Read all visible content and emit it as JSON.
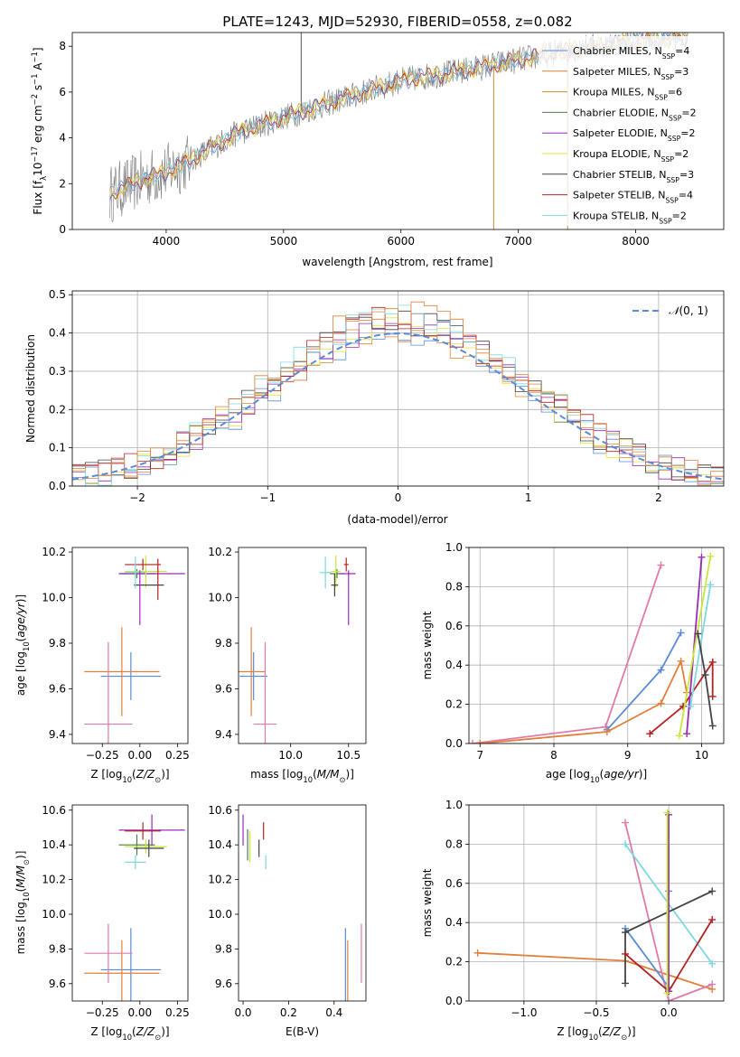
{
  "colors": {
    "chabrier_miles": "#5b8bd6",
    "salpeter_miles": "#e0803a",
    "kroupa_miles": "#d48a2a",
    "chabrier_elodie": "#4a7a4a",
    "salpeter_elodie": "#9a2bb5",
    "kroupa_elodie": "#e8e23a",
    "chabrier_stelib": "#444444",
    "salpeter_stelib": "#b22222",
    "kroupa_stelib": "#7dd8e0",
    "data": "#7a7a7a",
    "pink": "#e07aa8",
    "lime": "#c6e83a"
  },
  "chart_data": [
    {
      "id": "spectrum",
      "type": "line",
      "title": "PLATE=1243, MJD=52930, FIBERID=0558, z=0.082",
      "xlabel": "wavelength [Angstrom, rest frame]",
      "ylabel": "Flux [fλ10⁻¹⁷ erg cm⁻² s⁻¹ A⁻¹]",
      "xlim": [
        3200,
        8750
      ],
      "ylim": [
        0,
        8.6
      ],
      "xticks": [
        4000,
        5000,
        6000,
        7000,
        8000
      ],
      "yticks": [
        0,
        2,
        4,
        6,
        8
      ],
      "legend_position": "upper-right",
      "legend": [
        "Chabrier MILES, N_SSP=4",
        "Salpeter MILES, N_SSP=3",
        "Kroupa MILES, N_SSP=6",
        "Chabrier ELODIE, N_SSP=2",
        "Salpeter ELODIE, N_SSP=2",
        "Kroupa ELODIE, N_SSP=2",
        "Chabrier STELIB, N_SSP=3",
        "Salpeter STELIB, N_SSP=4",
        "Kroupa STELIB, N_SSP=2"
      ],
      "continuum": [
        [
          3500,
          1.5
        ],
        [
          3800,
          2.2
        ],
        [
          4000,
          2.5
        ],
        [
          4300,
          3.3
        ],
        [
          4600,
          4.2
        ],
        [
          5000,
          4.9
        ],
        [
          5500,
          5.7
        ],
        [
          6000,
          6.5
        ],
        [
          6500,
          6.9
        ],
        [
          7000,
          7.4
        ],
        [
          7500,
          7.9
        ],
        [
          8000,
          8.2
        ],
        [
          8400,
          8.4
        ]
      ],
      "spikes": [
        [
          5150,
          8.6
        ],
        [
          6790,
          0
        ],
        [
          7420,
          0
        ]
      ]
    },
    {
      "id": "residuals",
      "type": "histogram",
      "xlabel": "(data-model)/error",
      "ylabel": "Normed distribution",
      "xlim": [
        -2.5,
        2.5
      ],
      "ylim": [
        0,
        0.51
      ],
      "xticks": [
        -2,
        -1,
        0,
        1,
        2
      ],
      "yticks": [
        0.0,
        0.1,
        0.2,
        0.3,
        0.4,
        0.5
      ],
      "grid": true,
      "legend_position": "upper-right",
      "legend": [
        "N(0,1)"
      ],
      "bin_width": 0.1
    },
    {
      "id": "age_vs_Z",
      "type": "errorbar",
      "xlabel": "Z [log10(Z/Z⊙)]",
      "ylabel": "age [log10(age/yr)]",
      "xlim": [
        -0.45,
        0.32
      ],
      "ylim": [
        9.36,
        10.22
      ],
      "xticks": [
        -0.25,
        0.0,
        0.25
      ],
      "yticks": [
        9.4,
        9.6,
        9.8,
        10.0,
        10.2
      ],
      "points": [
        {
          "model": "chabrier_miles",
          "x": -0.06,
          "y": 9.655,
          "xerr": 0.2,
          "yerr": 0.105
        },
        {
          "model": "salpeter_miles",
          "x": -0.12,
          "y": 9.675,
          "xerr": 0.25,
          "yerr": 0.195
        },
        {
          "model": "pink",
          "x": -0.21,
          "y": 9.445,
          "xerr": 0.16,
          "yerr": 0.36
        },
        {
          "model": "chabrier_elodie",
          "x": -0.02,
          "y": 10.105,
          "xerr": 0.12,
          "yerr": 0.02
        },
        {
          "model": "salpeter_elodie",
          "x": 0.08,
          "y": 10.105,
          "xerr": 0.22,
          "yerr": 0.0
        },
        {
          "model": "lime",
          "x": 0.04,
          "y": 10.115,
          "xerr": 0.14,
          "yerr": 0.07
        },
        {
          "model": "chabrier_stelib",
          "x": 0.06,
          "y": 10.055,
          "xerr": 0.1,
          "yerr": 0.0
        },
        {
          "model": "salpeter_stelib",
          "x": 0.02,
          "y": 10.145,
          "xerr": 0.12,
          "yerr": 0.025
        },
        {
          "model": "kroupa_stelib",
          "x": -0.03,
          "y": 10.11,
          "xerr": 0.07,
          "yerr": 0.07
        },
        {
          "model": "salpeter_elodie",
          "x": 0.0,
          "y": 10.0,
          "xerr": 0.0,
          "yerr": 0.12
        },
        {
          "model": "salpeter_stelib",
          "x": 0.12,
          "y": 10.08,
          "xerr": 0.0,
          "yerr": 0.09
        }
      ]
    },
    {
      "id": "age_vs_mass",
      "type": "errorbar",
      "xlabel": "mass [log10(M/M⊙)]",
      "ylabel": "",
      "xlim": [
        9.55,
        10.65
      ],
      "ylim": [
        9.36,
        10.22
      ],
      "xticks": [
        10.0,
        10.5
      ],
      "yticks": [
        9.4,
        9.6,
        9.8,
        10.0,
        10.2
      ],
      "points": [
        {
          "model": "chabrier_miles",
          "x": 9.68,
          "y": 9.655,
          "xerr": 0.12,
          "yerr": 0.105
        },
        {
          "model": "salpeter_miles",
          "x": 9.66,
          "y": 9.675,
          "xerr": 0.12,
          "yerr": 0.195
        },
        {
          "model": "pink",
          "x": 9.78,
          "y": 9.445,
          "xerr": 0.1,
          "yerr": 0.36
        },
        {
          "model": "chabrier_elodie",
          "x": 10.4,
          "y": 10.105,
          "xerr": 0.06,
          "yerr": 0.02
        },
        {
          "model": "salpeter_elodie",
          "x": 10.49,
          "y": 10.105,
          "xerr": 0.07,
          "yerr": 0.0
        },
        {
          "model": "lime",
          "x": 10.39,
          "y": 10.115,
          "xerr": 0.04,
          "yerr": 0.07
        },
        {
          "model": "chabrier_stelib",
          "x": 10.38,
          "y": 10.055,
          "xerr": 0.03,
          "yerr": 0.05
        },
        {
          "model": "salpeter_stelib",
          "x": 10.48,
          "y": 10.145,
          "xerr": 0.02,
          "yerr": 0.03
        },
        {
          "model": "kroupa_stelib",
          "x": 10.3,
          "y": 10.11,
          "xerr": 0.05,
          "yerr": 0.07
        },
        {
          "model": "salpeter_elodie",
          "x": 10.5,
          "y": 10.0,
          "xerr": 0.0,
          "yerr": 0.12
        }
      ]
    },
    {
      "id": "weight_vs_age",
      "type": "line",
      "xlabel": "age [log10(age/yr)]",
      "ylabel": "mass weight",
      "xlim": [
        6.85,
        10.3
      ],
      "ylim": [
        0,
        1.0
      ],
      "xticks": [
        7,
        8,
        9,
        10
      ],
      "yticks": [
        0.0,
        0.2,
        0.4,
        0.6,
        0.8,
        1.0
      ],
      "grid": true,
      "series": [
        {
          "model": "pink",
          "x": [
            6.9,
            8.7,
            9.45
          ],
          "y": [
            0.0,
            0.085,
            0.91
          ]
        },
        {
          "model": "chabrier_miles",
          "x": [
            8.72,
            9.45,
            9.72
          ],
          "y": [
            0.07,
            0.375,
            0.565
          ]
        },
        {
          "model": "salpeter_miles",
          "x": [
            7.0,
            8.72,
            9.45,
            9.72,
            9.8
          ],
          "y": [
            0.0,
            0.06,
            0.205,
            0.42,
            0.26
          ]
        },
        {
          "model": "salpeter_stelib",
          "x": [
            9.3,
            9.75,
            10.15,
            10.15
          ],
          "y": [
            0.05,
            0.19,
            0.415,
            0.24
          ]
        },
        {
          "model": "salpeter_elodie",
          "x": [
            9.8,
            10.0
          ],
          "y": [
            0.05,
            0.95
          ]
        },
        {
          "model": "lime",
          "x": [
            9.7,
            10.12
          ],
          "y": [
            0.04,
            0.955
          ]
        },
        {
          "model": "kroupa_stelib",
          "x": [
            9.85,
            10.12
          ],
          "y": [
            0.19,
            0.81
          ]
        },
        {
          "model": "chabrier_stelib",
          "x": [
            9.95,
            10.05,
            10.15
          ],
          "y": [
            0.56,
            0.35,
            0.09
          ]
        }
      ]
    },
    {
      "id": "mass_vs_Z",
      "type": "errorbar",
      "xlabel": "Z [log10(Z/Z⊙)]",
      "ylabel": "mass [log10(M/M⊙)]",
      "xlim": [
        -0.45,
        0.32
      ],
      "ylim": [
        9.5,
        10.63
      ],
      "xticks": [
        -0.25,
        0.0,
        0.25
      ],
      "yticks": [
        9.6,
        9.8,
        10.0,
        10.2,
        10.4,
        10.6
      ],
      "points": [
        {
          "model": "chabrier_miles",
          "x": -0.06,
          "y": 9.68,
          "xerr": 0.2,
          "yerr": 0.24
        },
        {
          "model": "salpeter_miles",
          "x": -0.12,
          "y": 9.66,
          "xerr": 0.25,
          "yerr": 0.19
        },
        {
          "model": "pink",
          "x": -0.21,
          "y": 9.775,
          "xerr": 0.16,
          "yerr": 0.17
        },
        {
          "model": "chabrier_elodie",
          "x": -0.02,
          "y": 10.4,
          "xerr": 0.12,
          "yerr": 0.06
        },
        {
          "model": "salpeter_elodie",
          "x": 0.08,
          "y": 10.485,
          "xerr": 0.22,
          "yerr": 0.09
        },
        {
          "model": "lime",
          "x": 0.04,
          "y": 10.39,
          "xerr": 0.14,
          "yerr": 0.04
        },
        {
          "model": "chabrier_stelib",
          "x": 0.06,
          "y": 10.38,
          "xerr": 0.1,
          "yerr": 0.05
        },
        {
          "model": "salpeter_stelib",
          "x": 0.02,
          "y": 10.48,
          "xerr": 0.12,
          "yerr": 0.05
        },
        {
          "model": "kroupa_stelib",
          "x": -0.03,
          "y": 10.3,
          "xerr": 0.07,
          "yerr": 0.04
        }
      ]
    },
    {
      "id": "mass_vs_ebv",
      "type": "errorbar",
      "xlabel": "E(B-V)",
      "ylabel": "",
      "xlim": [
        -0.02,
        0.54
      ],
      "ylim": [
        9.5,
        10.63
      ],
      "xticks": [
        0.0,
        0.2,
        0.4
      ],
      "yticks": [
        9.6,
        9.8,
        10.0,
        10.2,
        10.4,
        10.6
      ],
      "points": [
        {
          "model": "salpeter_elodie",
          "x": 0.0,
          "y": 10.485,
          "yerr": 0.09
        },
        {
          "model": "chabrier_elodie",
          "x": 0.02,
          "y": 10.4,
          "yerr": 0.09
        },
        {
          "model": "lime",
          "x": 0.03,
          "y": 10.39,
          "yerr": 0.09
        },
        {
          "model": "chabrier_stelib",
          "x": 0.07,
          "y": 10.38,
          "yerr": 0.05
        },
        {
          "model": "salpeter_stelib",
          "x": 0.09,
          "y": 10.48,
          "yerr": 0.05
        },
        {
          "model": "kroupa_stelib",
          "x": 0.1,
          "y": 10.3,
          "yerr": 0.04
        },
        {
          "model": "chabrier_miles",
          "x": 0.45,
          "y": 9.68,
          "yerr": 0.24
        },
        {
          "model": "salpeter_miles",
          "x": 0.46,
          "y": 9.66,
          "yerr": 0.19
        },
        {
          "model": "pink",
          "x": 0.52,
          "y": 9.775,
          "yerr": 0.17
        }
      ]
    },
    {
      "id": "weight_vs_Z",
      "type": "line",
      "xlabel": "Z [log10(Z/Z⊙)]",
      "ylabel": "mass weight",
      "xlim": [
        -1.38,
        0.38
      ],
      "ylim": [
        0,
        1.0
      ],
      "xticks": [
        -1.0,
        -0.5,
        0.0
      ],
      "yticks": [
        0.0,
        0.2,
        0.4,
        0.6,
        0.8,
        1.0
      ],
      "grid": true,
      "series": [
        {
          "model": "salpeter_miles",
          "x": [
            -1.32,
            -0.3,
            0.3
          ],
          "y": [
            0.245,
            0.205,
            0.06
          ]
        },
        {
          "model": "pink",
          "x": [
            -0.3,
            0.0,
            0.3
          ],
          "y": [
            0.91,
            0.0,
            0.085
          ]
        },
        {
          "model": "kroupa_stelib",
          "x": [
            -0.3,
            0.3
          ],
          "y": [
            0.8,
            0.19
          ]
        },
        {
          "model": "chabrier_miles",
          "x": [
            -0.3,
            0.0,
            0.0
          ],
          "y": [
            0.37,
            0.07,
            0.56
          ]
        },
        {
          "model": "chabrier_stelib",
          "x": [
            -0.3,
            -0.3,
            0.3
          ],
          "y": [
            0.09,
            0.35,
            0.56
          ]
        },
        {
          "model": "salpeter_stelib",
          "x": [
            -0.3,
            0.0,
            0.3
          ],
          "y": [
            0.24,
            0.05,
            0.415
          ]
        },
        {
          "model": "salpeter_elodie",
          "x": [
            0.0,
            0.0
          ],
          "y": [
            0.05,
            0.95
          ]
        },
        {
          "model": "lime",
          "x": [
            -0.01,
            -0.01
          ],
          "y": [
            0.04,
            0.96
          ]
        }
      ]
    }
  ]
}
